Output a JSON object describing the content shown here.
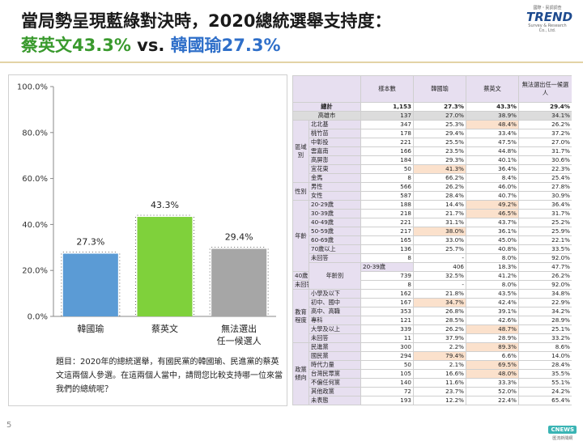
{
  "title": {
    "line1": "當局勢呈現藍綠對決時，2020總統選舉支持度：",
    "line2_a": "蔡英文43.3%",
    "line2_vs": " vs. ",
    "line2_b": "韓國瑜27.3%"
  },
  "logo": {
    "top": "國際・民調調查",
    "main": "TREND",
    "bottom": "Survey & Research Co., Ltd."
  },
  "colors": {
    "han": "#5b9bd5",
    "tsai": "#7fd13b",
    "none": "#a6a6a6",
    "highlight": "#fbe1cc",
    "header_bg": "#e7dff0"
  },
  "chart_data": {
    "type": "bar",
    "categories": [
      "韓國瑜",
      "蔡英文",
      "無法選出|任一候選人"
    ],
    "values": [
      27.3,
      43.3,
      29.4
    ],
    "value_labels": [
      "27.3%",
      "43.3%",
      "29.4%"
    ],
    "y_ticks": [
      "0.0%",
      "20.0%",
      "40.0%",
      "60.0%",
      "80.0%",
      "100.0%"
    ],
    "ylim": [
      0,
      100
    ],
    "grid": false,
    "title": "",
    "xlabel": "",
    "ylabel": ""
  },
  "question": "題目：2020年的總統選舉，有國民黨的韓國瑜、民進黨的蔡英文這兩個人參選。在這兩個人當中，請問您比較支持哪一位來當我們的總統呢？",
  "table": {
    "headers": [
      "樣本數",
      "韓國瑜",
      "蔡英文",
      "無法選出任一候選人"
    ],
    "rows": [
      {
        "group": "",
        "label": "總計",
        "vals": [
          "1,153",
          "27.3%",
          "43.3%",
          "29.4%"
        ],
        "style": "total"
      },
      {
        "group": "",
        "label": "高雄市",
        "vals": [
          "137",
          "27.0%",
          "38.9%",
          "34.1%"
        ],
        "style": "grey"
      },
      {
        "group": "區域別",
        "span": 7,
        "label": "北北基",
        "vals": [
          "347",
          "25.3%",
          "48.4%",
          "26.2%"
        ],
        "hl": [
          2
        ]
      },
      {
        "label": "桃竹苗",
        "vals": [
          "178",
          "29.4%",
          "33.4%",
          "37.2%"
        ]
      },
      {
        "label": "中彰投",
        "vals": [
          "221",
          "25.5%",
          "47.5%",
          "27.0%"
        ]
      },
      {
        "label": "雲嘉南",
        "vals": [
          "166",
          "23.5%",
          "44.8%",
          "31.7%"
        ]
      },
      {
        "label": "高屏澎",
        "vals": [
          "184",
          "29.3%",
          "40.1%",
          "30.6%"
        ]
      },
      {
        "label": "宜花東",
        "vals": [
          "50",
          "41.3%",
          "36.4%",
          "22.3%"
        ],
        "hl": [
          1
        ]
      },
      {
        "label": "金馬",
        "vals": [
          "8",
          "66.2%",
          "8.4%",
          "25.4%"
        ]
      },
      {
        "group": "性別",
        "span": 2,
        "label": "男性",
        "vals": [
          "566",
          "26.2%",
          "46.0%",
          "27.8%"
        ]
      },
      {
        "label": "女性",
        "vals": [
          "587",
          "28.4%",
          "40.7%",
          "30.9%"
        ]
      },
      {
        "group": "年齡",
        "span": 8,
        "label": "20-29歲",
        "vals": [
          "188",
          "14.4%",
          "49.2%",
          "36.4%"
        ],
        "hl": [
          2
        ]
      },
      {
        "label": "30-39歲",
        "vals": [
          "218",
          "21.7%",
          "46.5%",
          "31.7%"
        ],
        "hl": [
          2
        ]
      },
      {
        "label": "40-49歲",
        "vals": [
          "221",
          "31.1%",
          "43.7%",
          "25.2%"
        ]
      },
      {
        "label": "50-59歲",
        "vals": [
          "217",
          "38.0%",
          "36.1%",
          "25.9%"
        ],
        "hl": [
          1
        ]
      },
      {
        "label": "60-69歲",
        "vals": [
          "165",
          "33.0%",
          "45.0%",
          "22.1%"
        ]
      },
      {
        "label": "70歲以上",
        "vals": [
          "136",
          "25.7%",
          "40.8%",
          "33.5%"
        ]
      },
      {
        "label": "未回答",
        "vals": [
          "8",
          "-",
          "8.0%",
          "92.0%"
        ]
      },
      {
        "group": "年齡別",
        "span": 3,
        "label": "20-39歲",
        "vals": [
          "406",
          "18.3%",
          "47.7%",
          "33.9%"
        ]
      },
      {
        "label": "40歲以上",
        "vals": [
          "739",
          "32.5%",
          "41.2%",
          "26.2%"
        ]
      },
      {
        "label": "未回答",
        "vals": [
          "8",
          "-",
          "8.0%",
          "92.0%"
        ]
      },
      {
        "group": "教育程度",
        "span": 6,
        "label": "小學及以下",
        "vals": [
          "162",
          "21.8%",
          "43.5%",
          "34.8%"
        ]
      },
      {
        "label": "初中、國中",
        "vals": [
          "167",
          "34.7%",
          "42.4%",
          "22.9%"
        ],
        "hl": [
          1
        ]
      },
      {
        "label": "高中、高職",
        "vals": [
          "353",
          "26.8%",
          "39.1%",
          "34.2%"
        ]
      },
      {
        "label": "專科",
        "vals": [
          "121",
          "28.5%",
          "42.6%",
          "28.9%"
        ]
      },
      {
        "label": "大學及以上",
        "vals": [
          "339",
          "26.2%",
          "48.7%",
          "25.1%"
        ],
        "hl": [
          2
        ]
      },
      {
        "label": "未回答",
        "vals": [
          "11",
          "37.9%",
          "28.9%",
          "33.2%"
        ]
      },
      {
        "group": "政黨傾向",
        "span": 7,
        "label": "民進黨",
        "vals": [
          "300",
          "2.2%",
          "89.3%",
          "8.6%"
        ],
        "hl": [
          2
        ]
      },
      {
        "label": "國民黨",
        "vals": [
          "294",
          "79.4%",
          "6.6%",
          "14.0%"
        ],
        "hl": [
          1
        ]
      },
      {
        "label": "時代力量",
        "vals": [
          "50",
          "2.1%",
          "69.5%",
          "28.4%"
        ],
        "hl": [
          2
        ]
      },
      {
        "label": "台灣民眾黨",
        "vals": [
          "105",
          "16.6%",
          "48.0%",
          "35.5%"
        ],
        "hl": [
          2
        ]
      },
      {
        "label": "不偏任何黨",
        "vals": [
          "140",
          "11.6%",
          "33.3%",
          "55.1%"
        ]
      },
      {
        "label": "其他政黨",
        "vals": [
          "72",
          "23.7%",
          "52.0%",
          "24.2%"
        ]
      },
      {
        "label": "未表態",
        "vals": [
          "193",
          "12.2%",
          "22.4%",
          "65.4%"
        ]
      }
    ]
  },
  "footer": {
    "page": "5",
    "badge": "CNEWS",
    "badge_sub": "匯流新聞網"
  }
}
